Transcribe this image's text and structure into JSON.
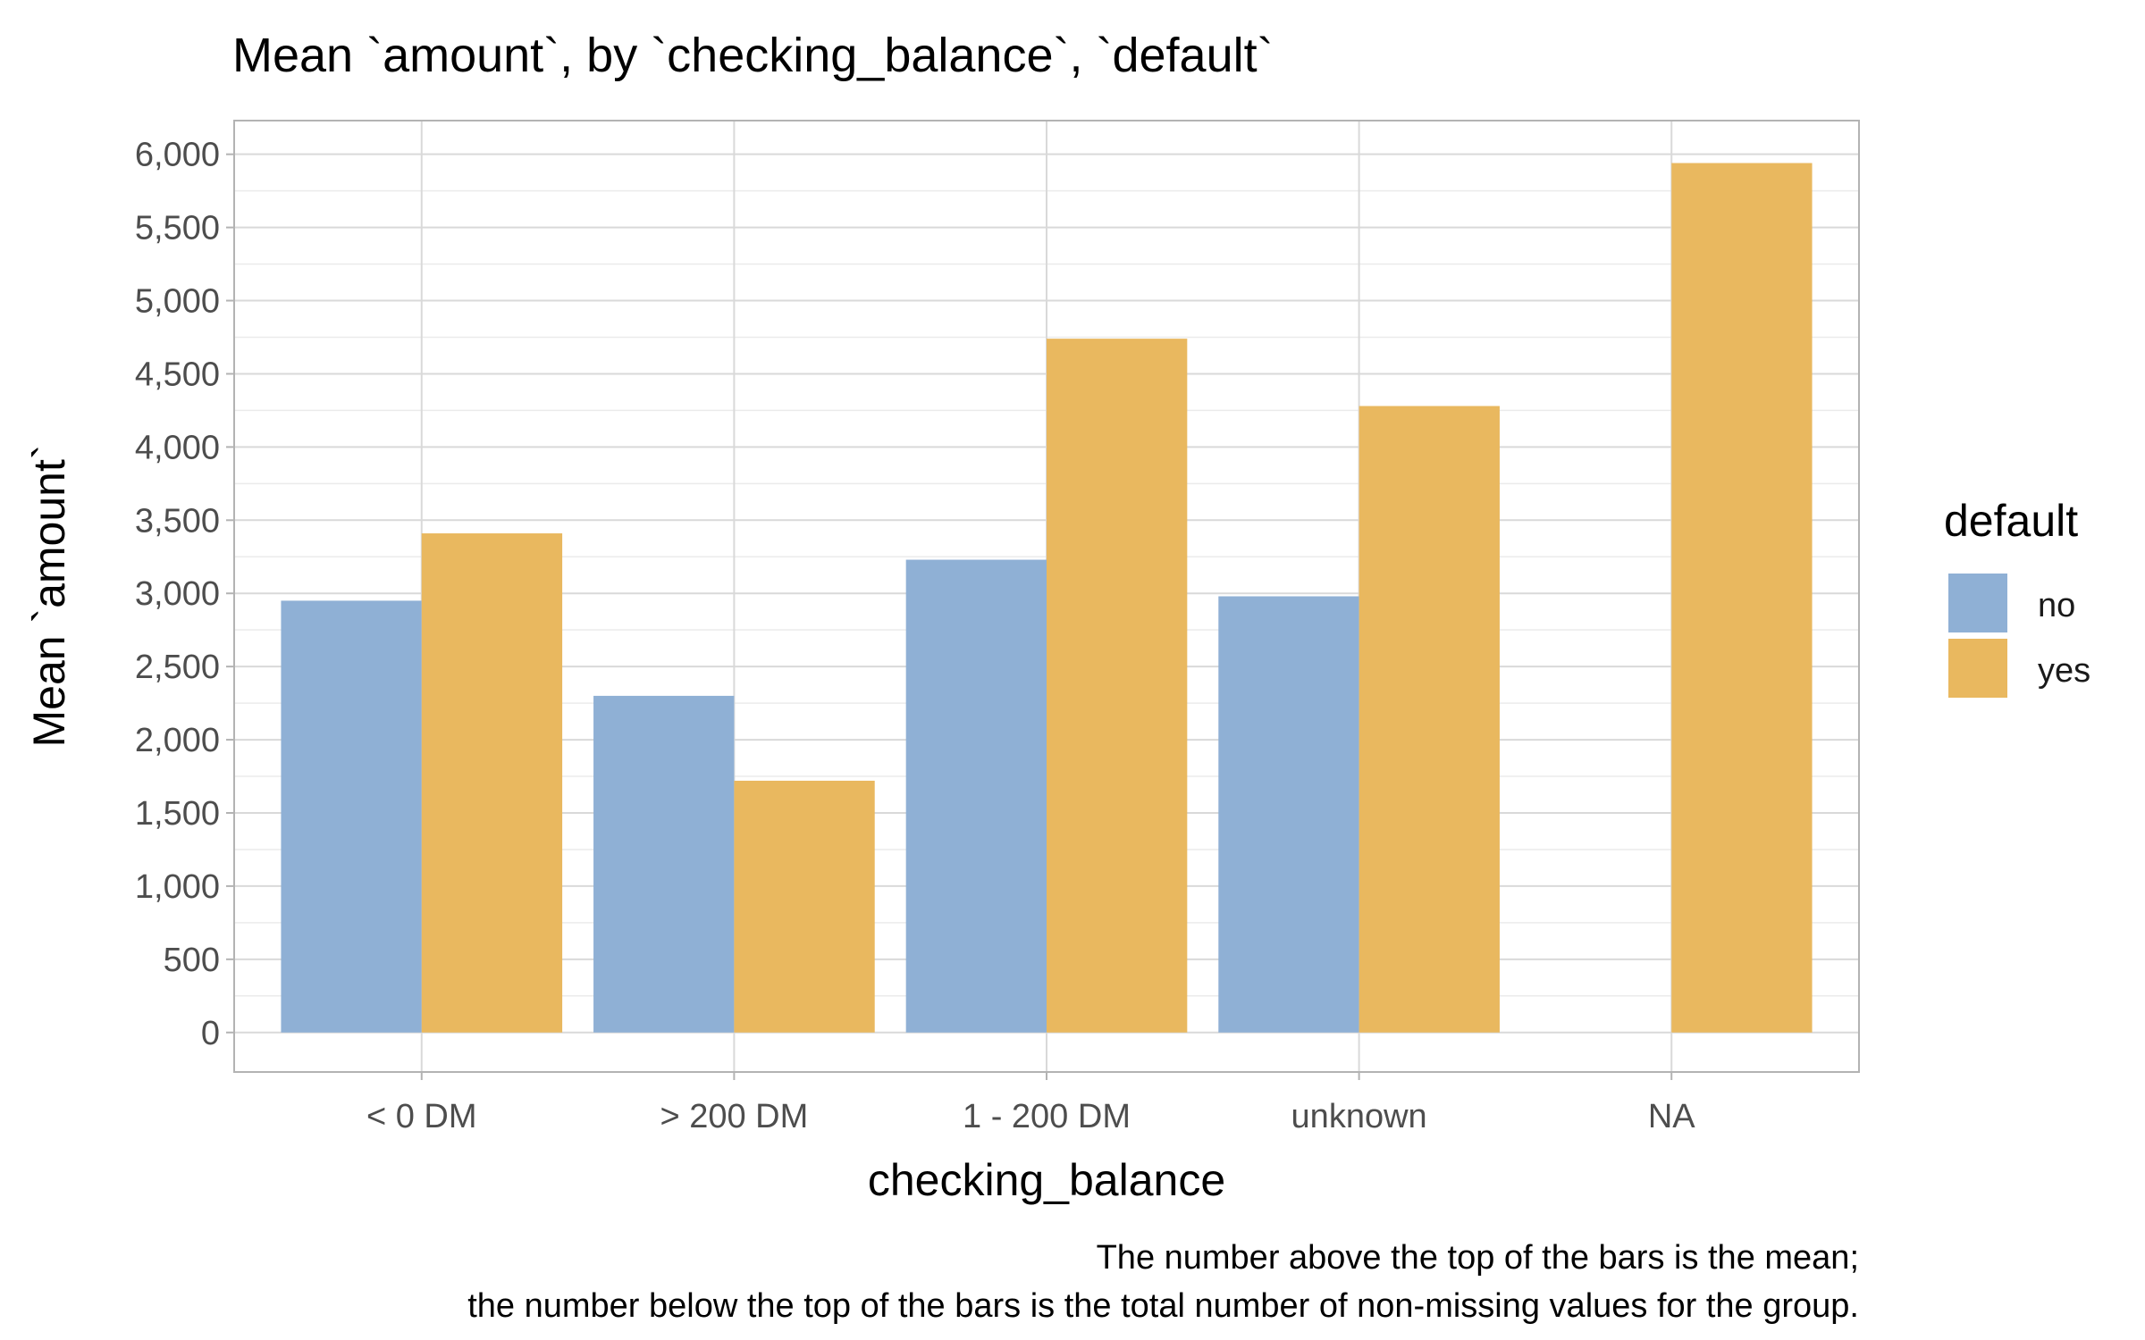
{
  "chart_data": {
    "type": "bar",
    "title": "Mean `amount`, by `checking_balance`, `default`",
    "xlabel": "checking_balance",
    "ylabel": "Mean `amount`",
    "categories": [
      "< 0 DM",
      "> 200 DM",
      "1 - 200 DM",
      "unknown",
      "NA"
    ],
    "series": [
      {
        "name": "no",
        "color": "#8fb0d5",
        "values": [
          2950,
          2300,
          3230,
          2980,
          null
        ]
      },
      {
        "name": "yes",
        "color": "#e9b85f",
        "values": [
          3410,
          1720,
          4740,
          4280,
          5940
        ]
      }
    ],
    "ylim": [
      -270,
      6230
    ],
    "yticks": [
      0,
      500,
      1000,
      1500,
      2000,
      2500,
      3000,
      3500,
      4000,
      4500,
      5000,
      5500,
      6000
    ],
    "ytick_labels": [
      "0",
      "500",
      "1,000",
      "1,500",
      "2,000",
      "2,500",
      "3,000",
      "3,500",
      "4,000",
      "4,500",
      "5,000",
      "5,500",
      "6,000"
    ],
    "grid": true,
    "legend": {
      "title": "default",
      "position": "right",
      "entries": [
        "no",
        "yes"
      ]
    },
    "caption": [
      "The number above the top of the bars is the mean;",
      "the number below the top of the bars is the total number of non-missing values for the group."
    ]
  }
}
